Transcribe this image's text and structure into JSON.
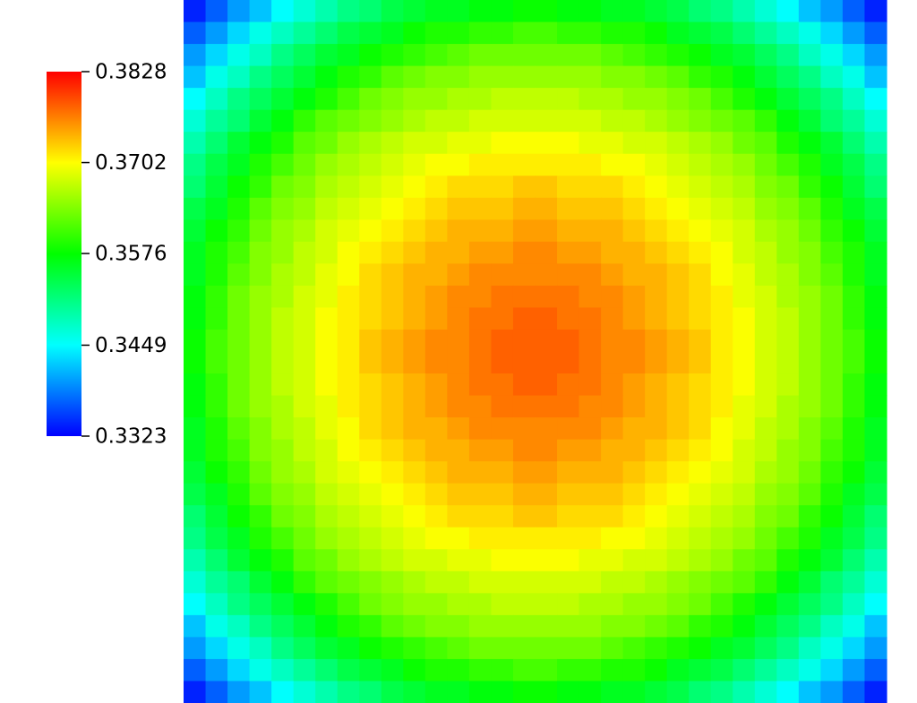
{
  "chart_data": {
    "type": "heatmap",
    "colormap": [
      "#0000ff",
      "#00ffff",
      "#00ff00",
      "#ffff00",
      "#ff0000"
    ],
    "colorbar": {
      "lim": [
        0.3323,
        0.3828
      ],
      "ticks": [
        0.3323,
        0.3449,
        0.3576,
        0.3702,
        0.3828
      ]
    },
    "values": [
      [
        0.334,
        0.337,
        0.34,
        0.342,
        0.345,
        0.347,
        0.349,
        0.351,
        0.352,
        0.354,
        0.355,
        0.356,
        0.356,
        0.357,
        0.357,
        0.358,
        0.358,
        0.357,
        0.357,
        0.356,
        0.356,
        0.355,
        0.354,
        0.352,
        0.351,
        0.349,
        0.347,
        0.345,
        0.342,
        0.34,
        0.337,
        0.334
      ],
      [
        0.337,
        0.34,
        0.343,
        0.346,
        0.348,
        0.35,
        0.352,
        0.354,
        0.355,
        0.356,
        0.358,
        0.359,
        0.359,
        0.36,
        0.36,
        0.361,
        0.361,
        0.36,
        0.36,
        0.359,
        0.359,
        0.358,
        0.356,
        0.355,
        0.354,
        0.352,
        0.35,
        0.348,
        0.346,
        0.343,
        0.34,
        0.337
      ],
      [
        0.34,
        0.343,
        0.346,
        0.348,
        0.351,
        0.353,
        0.355,
        0.356,
        0.358,
        0.359,
        0.36,
        0.361,
        0.362,
        0.363,
        0.363,
        0.363,
        0.363,
        0.363,
        0.363,
        0.362,
        0.361,
        0.36,
        0.359,
        0.358,
        0.356,
        0.355,
        0.353,
        0.351,
        0.348,
        0.346,
        0.343,
        0.34
      ],
      [
        0.342,
        0.346,
        0.348,
        0.351,
        0.353,
        0.355,
        0.357,
        0.359,
        0.36,
        0.362,
        0.363,
        0.364,
        0.364,
        0.365,
        0.365,
        0.365,
        0.365,
        0.365,
        0.365,
        0.364,
        0.364,
        0.363,
        0.362,
        0.36,
        0.359,
        0.357,
        0.355,
        0.353,
        0.351,
        0.348,
        0.346,
        0.342
      ],
      [
        0.345,
        0.348,
        0.351,
        0.353,
        0.355,
        0.357,
        0.359,
        0.361,
        0.363,
        0.364,
        0.365,
        0.365,
        0.366,
        0.366,
        0.367,
        0.367,
        0.367,
        0.367,
        0.366,
        0.366,
        0.365,
        0.365,
        0.364,
        0.363,
        0.361,
        0.359,
        0.357,
        0.355,
        0.353,
        0.351,
        0.348,
        0.345
      ],
      [
        0.347,
        0.35,
        0.352,
        0.355,
        0.357,
        0.36,
        0.362,
        0.363,
        0.364,
        0.365,
        0.366,
        0.367,
        0.367,
        0.368,
        0.368,
        0.368,
        0.368,
        0.368,
        0.368,
        0.367,
        0.367,
        0.366,
        0.365,
        0.364,
        0.363,
        0.362,
        0.36,
        0.357,
        0.355,
        0.352,
        0.35,
        0.347
      ],
      [
        0.349,
        0.352,
        0.355,
        0.357,
        0.359,
        0.362,
        0.363,
        0.365,
        0.366,
        0.367,
        0.368,
        0.368,
        0.369,
        0.369,
        0.37,
        0.37,
        0.37,
        0.37,
        0.369,
        0.369,
        0.368,
        0.368,
        0.367,
        0.366,
        0.365,
        0.363,
        0.362,
        0.359,
        0.357,
        0.355,
        0.352,
        0.349
      ],
      [
        0.351,
        0.354,
        0.356,
        0.359,
        0.361,
        0.363,
        0.365,
        0.366,
        0.367,
        0.368,
        0.369,
        0.37,
        0.37,
        0.371,
        0.371,
        0.371,
        0.371,
        0.371,
        0.371,
        0.37,
        0.37,
        0.369,
        0.368,
        0.367,
        0.366,
        0.365,
        0.363,
        0.361,
        0.359,
        0.356,
        0.354,
        0.351
      ],
      [
        0.352,
        0.355,
        0.358,
        0.36,
        0.363,
        0.364,
        0.366,
        0.367,
        0.368,
        0.369,
        0.37,
        0.371,
        0.372,
        0.372,
        0.372,
        0.373,
        0.373,
        0.372,
        0.372,
        0.372,
        0.371,
        0.37,
        0.369,
        0.368,
        0.367,
        0.366,
        0.364,
        0.363,
        0.36,
        0.358,
        0.355,
        0.352
      ],
      [
        0.354,
        0.356,
        0.359,
        0.362,
        0.364,
        0.365,
        0.367,
        0.368,
        0.369,
        0.37,
        0.371,
        0.372,
        0.373,
        0.373,
        0.373,
        0.374,
        0.374,
        0.373,
        0.373,
        0.373,
        0.372,
        0.371,
        0.37,
        0.369,
        0.368,
        0.367,
        0.365,
        0.364,
        0.362,
        0.359,
        0.356,
        0.354
      ],
      [
        0.355,
        0.358,
        0.36,
        0.363,
        0.365,
        0.366,
        0.368,
        0.369,
        0.37,
        0.371,
        0.372,
        0.373,
        0.374,
        0.374,
        0.374,
        0.375,
        0.375,
        0.374,
        0.374,
        0.374,
        0.373,
        0.372,
        0.371,
        0.37,
        0.369,
        0.368,
        0.366,
        0.365,
        0.363,
        0.36,
        0.358,
        0.355
      ],
      [
        0.356,
        0.359,
        0.361,
        0.364,
        0.365,
        0.367,
        0.368,
        0.37,
        0.371,
        0.372,
        0.373,
        0.374,
        0.374,
        0.375,
        0.375,
        0.376,
        0.376,
        0.375,
        0.375,
        0.374,
        0.374,
        0.373,
        0.372,
        0.371,
        0.37,
        0.368,
        0.367,
        0.365,
        0.364,
        0.361,
        0.359,
        0.356
      ],
      [
        0.356,
        0.359,
        0.362,
        0.364,
        0.366,
        0.367,
        0.369,
        0.37,
        0.372,
        0.373,
        0.374,
        0.374,
        0.375,
        0.376,
        0.376,
        0.376,
        0.376,
        0.376,
        0.376,
        0.375,
        0.374,
        0.374,
        0.373,
        0.372,
        0.37,
        0.369,
        0.367,
        0.366,
        0.364,
        0.362,
        0.359,
        0.356
      ],
      [
        0.357,
        0.36,
        0.363,
        0.365,
        0.366,
        0.368,
        0.369,
        0.371,
        0.372,
        0.373,
        0.374,
        0.375,
        0.376,
        0.376,
        0.377,
        0.377,
        0.377,
        0.377,
        0.376,
        0.376,
        0.375,
        0.374,
        0.373,
        0.372,
        0.371,
        0.369,
        0.368,
        0.366,
        0.365,
        0.363,
        0.36,
        0.357
      ],
      [
        0.357,
        0.36,
        0.363,
        0.365,
        0.367,
        0.368,
        0.37,
        0.371,
        0.372,
        0.373,
        0.374,
        0.375,
        0.376,
        0.377,
        0.377,
        0.378,
        0.378,
        0.377,
        0.377,
        0.376,
        0.375,
        0.374,
        0.373,
        0.372,
        0.371,
        0.37,
        0.368,
        0.367,
        0.365,
        0.363,
        0.36,
        0.357
      ],
      [
        0.358,
        0.361,
        0.363,
        0.365,
        0.367,
        0.368,
        0.37,
        0.371,
        0.373,
        0.374,
        0.375,
        0.376,
        0.376,
        0.377,
        0.378,
        0.378,
        0.378,
        0.378,
        0.377,
        0.376,
        0.376,
        0.375,
        0.374,
        0.373,
        0.371,
        0.37,
        0.368,
        0.367,
        0.365,
        0.363,
        0.361,
        0.358
      ],
      [
        0.358,
        0.361,
        0.363,
        0.365,
        0.367,
        0.368,
        0.37,
        0.371,
        0.373,
        0.374,
        0.375,
        0.376,
        0.376,
        0.377,
        0.378,
        0.378,
        0.378,
        0.378,
        0.377,
        0.376,
        0.376,
        0.375,
        0.374,
        0.373,
        0.371,
        0.37,
        0.368,
        0.367,
        0.365,
        0.363,
        0.361,
        0.358
      ],
      [
        0.357,
        0.36,
        0.363,
        0.365,
        0.367,
        0.368,
        0.37,
        0.371,
        0.372,
        0.373,
        0.374,
        0.375,
        0.376,
        0.377,
        0.377,
        0.378,
        0.378,
        0.377,
        0.377,
        0.376,
        0.375,
        0.374,
        0.373,
        0.372,
        0.371,
        0.37,
        0.368,
        0.367,
        0.365,
        0.363,
        0.36,
        0.357
      ],
      [
        0.357,
        0.36,
        0.363,
        0.365,
        0.366,
        0.368,
        0.369,
        0.371,
        0.372,
        0.373,
        0.374,
        0.375,
        0.376,
        0.376,
        0.377,
        0.377,
        0.377,
        0.377,
        0.376,
        0.376,
        0.375,
        0.374,
        0.373,
        0.372,
        0.371,
        0.369,
        0.368,
        0.366,
        0.365,
        0.363,
        0.36,
        0.357
      ],
      [
        0.356,
        0.359,
        0.362,
        0.364,
        0.366,
        0.367,
        0.369,
        0.37,
        0.372,
        0.373,
        0.374,
        0.374,
        0.375,
        0.376,
        0.376,
        0.376,
        0.376,
        0.376,
        0.376,
        0.375,
        0.374,
        0.374,
        0.373,
        0.372,
        0.37,
        0.369,
        0.367,
        0.366,
        0.364,
        0.362,
        0.359,
        0.356
      ],
      [
        0.356,
        0.359,
        0.361,
        0.364,
        0.365,
        0.367,
        0.368,
        0.37,
        0.371,
        0.372,
        0.373,
        0.374,
        0.374,
        0.375,
        0.375,
        0.376,
        0.376,
        0.375,
        0.375,
        0.374,
        0.374,
        0.373,
        0.372,
        0.371,
        0.37,
        0.368,
        0.367,
        0.365,
        0.364,
        0.361,
        0.359,
        0.356
      ],
      [
        0.355,
        0.358,
        0.36,
        0.363,
        0.365,
        0.366,
        0.368,
        0.369,
        0.37,
        0.371,
        0.372,
        0.373,
        0.374,
        0.374,
        0.374,
        0.375,
        0.375,
        0.374,
        0.374,
        0.374,
        0.373,
        0.372,
        0.371,
        0.37,
        0.369,
        0.368,
        0.366,
        0.365,
        0.363,
        0.36,
        0.358,
        0.355
      ],
      [
        0.354,
        0.356,
        0.359,
        0.362,
        0.364,
        0.365,
        0.367,
        0.368,
        0.369,
        0.37,
        0.371,
        0.372,
        0.373,
        0.373,
        0.373,
        0.374,
        0.374,
        0.373,
        0.373,
        0.373,
        0.372,
        0.371,
        0.37,
        0.369,
        0.368,
        0.367,
        0.365,
        0.364,
        0.362,
        0.359,
        0.356,
        0.354
      ],
      [
        0.352,
        0.355,
        0.358,
        0.36,
        0.363,
        0.364,
        0.366,
        0.367,
        0.368,
        0.369,
        0.37,
        0.371,
        0.372,
        0.372,
        0.372,
        0.373,
        0.373,
        0.372,
        0.372,
        0.372,
        0.371,
        0.37,
        0.369,
        0.368,
        0.367,
        0.366,
        0.364,
        0.363,
        0.36,
        0.358,
        0.355,
        0.352
      ],
      [
        0.351,
        0.354,
        0.356,
        0.359,
        0.361,
        0.363,
        0.365,
        0.366,
        0.367,
        0.368,
        0.369,
        0.37,
        0.37,
        0.371,
        0.371,
        0.371,
        0.371,
        0.371,
        0.371,
        0.37,
        0.37,
        0.369,
        0.368,
        0.367,
        0.366,
        0.365,
        0.363,
        0.361,
        0.359,
        0.356,
        0.354,
        0.351
      ],
      [
        0.349,
        0.352,
        0.355,
        0.357,
        0.359,
        0.362,
        0.363,
        0.365,
        0.366,
        0.367,
        0.368,
        0.368,
        0.369,
        0.369,
        0.37,
        0.37,
        0.37,
        0.37,
        0.369,
        0.369,
        0.368,
        0.368,
        0.367,
        0.366,
        0.365,
        0.363,
        0.362,
        0.359,
        0.357,
        0.355,
        0.352,
        0.349
      ],
      [
        0.347,
        0.35,
        0.352,
        0.355,
        0.357,
        0.36,
        0.362,
        0.363,
        0.364,
        0.365,
        0.366,
        0.367,
        0.367,
        0.368,
        0.368,
        0.368,
        0.368,
        0.368,
        0.368,
        0.367,
        0.367,
        0.366,
        0.365,
        0.364,
        0.363,
        0.362,
        0.36,
        0.357,
        0.355,
        0.352,
        0.35,
        0.347
      ],
      [
        0.345,
        0.348,
        0.351,
        0.353,
        0.355,
        0.357,
        0.359,
        0.361,
        0.363,
        0.364,
        0.365,
        0.365,
        0.366,
        0.366,
        0.367,
        0.367,
        0.367,
        0.367,
        0.366,
        0.366,
        0.365,
        0.365,
        0.364,
        0.363,
        0.361,
        0.359,
        0.357,
        0.355,
        0.353,
        0.351,
        0.348,
        0.345
      ],
      [
        0.342,
        0.346,
        0.348,
        0.351,
        0.353,
        0.355,
        0.357,
        0.359,
        0.36,
        0.362,
        0.363,
        0.364,
        0.364,
        0.365,
        0.365,
        0.365,
        0.365,
        0.365,
        0.365,
        0.364,
        0.364,
        0.363,
        0.362,
        0.36,
        0.359,
        0.357,
        0.355,
        0.353,
        0.351,
        0.348,
        0.346,
        0.342
      ],
      [
        0.34,
        0.343,
        0.346,
        0.348,
        0.351,
        0.353,
        0.355,
        0.356,
        0.358,
        0.359,
        0.36,
        0.361,
        0.362,
        0.363,
        0.363,
        0.363,
        0.363,
        0.363,
        0.363,
        0.362,
        0.361,
        0.36,
        0.359,
        0.358,
        0.356,
        0.355,
        0.353,
        0.351,
        0.348,
        0.346,
        0.343,
        0.34
      ],
      [
        0.337,
        0.34,
        0.343,
        0.346,
        0.348,
        0.35,
        0.352,
        0.354,
        0.355,
        0.356,
        0.358,
        0.359,
        0.359,
        0.36,
        0.36,
        0.361,
        0.361,
        0.36,
        0.36,
        0.359,
        0.359,
        0.358,
        0.356,
        0.355,
        0.354,
        0.352,
        0.35,
        0.348,
        0.346,
        0.343,
        0.34,
        0.337
      ],
      [
        0.334,
        0.337,
        0.34,
        0.342,
        0.345,
        0.347,
        0.349,
        0.351,
        0.352,
        0.354,
        0.355,
        0.356,
        0.356,
        0.357,
        0.357,
        0.358,
        0.358,
        0.357,
        0.357,
        0.356,
        0.356,
        0.355,
        0.354,
        0.352,
        0.351,
        0.349,
        0.347,
        0.345,
        0.342,
        0.34,
        0.337,
        0.334
      ]
    ]
  }
}
